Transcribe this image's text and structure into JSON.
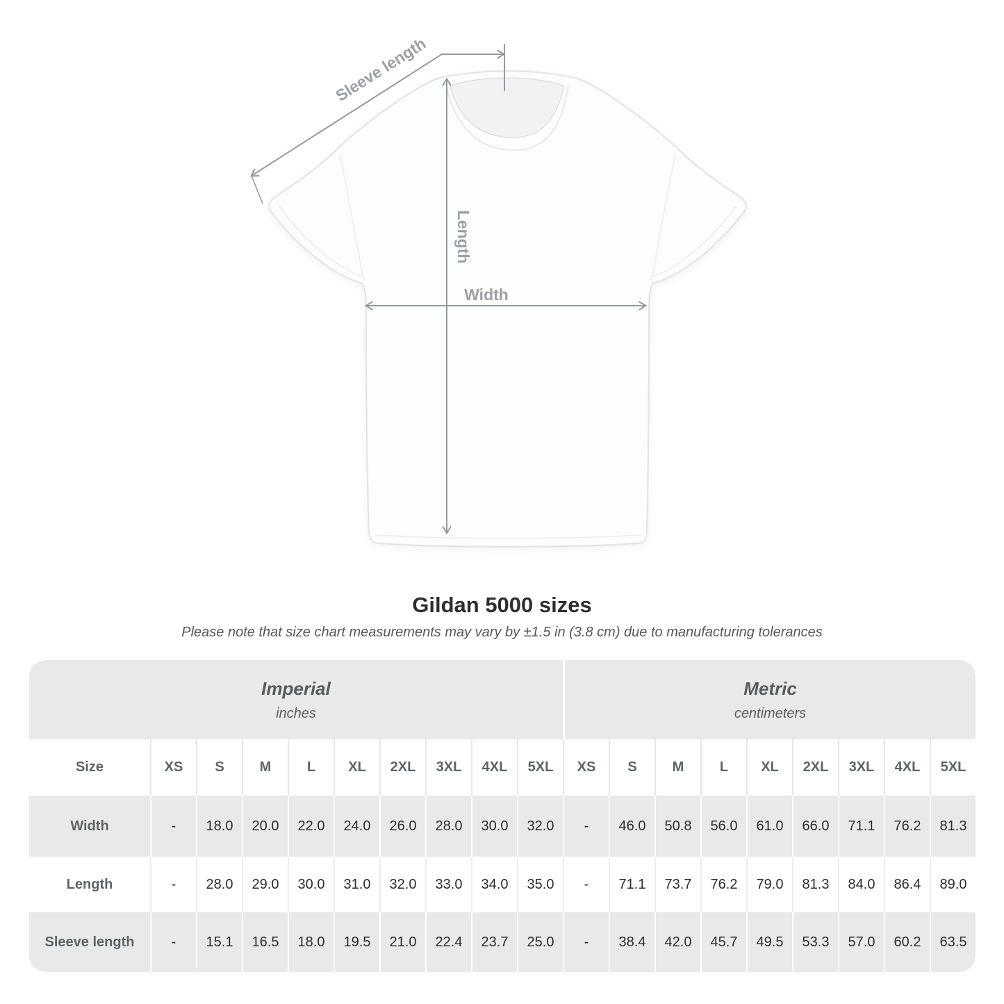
{
  "diagram": {
    "sleeve_length_label": "Sleeve length",
    "length_label": "Length",
    "width_label": "Width"
  },
  "chart_data": {
    "type": "table",
    "title": "Gildan 5000 sizes",
    "note": "Please note that size chart measurements may vary by ±1.5 in (3.8 cm) due to manufacturing tolerances",
    "size_column_header": "Size",
    "size_labels": [
      "XS",
      "S",
      "M",
      "L",
      "XL",
      "2XL",
      "3XL",
      "4XL",
      "5XL"
    ],
    "group_headers": [
      {
        "label": "Imperial",
        "unit": "inches"
      },
      {
        "label": "Metric",
        "unit": "centimeters"
      }
    ],
    "rows": [
      {
        "label": "Width",
        "imperial": [
          "-",
          "18.0",
          "20.0",
          "22.0",
          "24.0",
          "26.0",
          "28.0",
          "30.0",
          "32.0"
        ],
        "metric": [
          "-",
          "46.0",
          "50.8",
          "56.0",
          "61.0",
          "66.0",
          "71.1",
          "76.2",
          "81.3"
        ]
      },
      {
        "label": "Length",
        "imperial": [
          "-",
          "28.0",
          "29.0",
          "30.0",
          "31.0",
          "32.0",
          "33.0",
          "34.0",
          "35.0"
        ],
        "metric": [
          "-",
          "71.1",
          "73.7",
          "76.2",
          "79.0",
          "81.3",
          "84.0",
          "86.4",
          "89.0"
        ]
      },
      {
        "label": "Sleeve length",
        "imperial": [
          "-",
          "15.1",
          "16.5",
          "18.0",
          "19.5",
          "21.0",
          "22.4",
          "23.7",
          "25.0"
        ],
        "metric": [
          "-",
          "38.4",
          "42.0",
          "45.7",
          "49.5",
          "53.3",
          "57.0",
          "60.2",
          "63.5"
        ]
      }
    ]
  },
  "colors": {
    "table_stripe": "#e9e9e9",
    "dimension_lines": "#949a9e",
    "header_text": "#5d6467",
    "value_text": "#2d2d2d"
  }
}
